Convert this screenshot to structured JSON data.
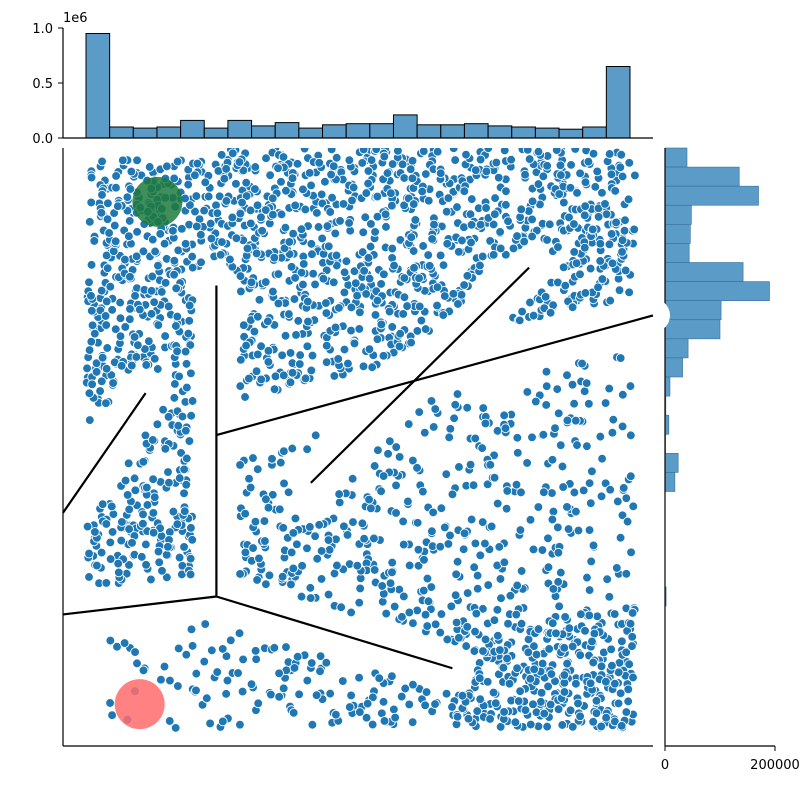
{
  "chart_data": [
    {
      "type": "bar",
      "panel": "top-marginal-histogram",
      "orientation": "vertical",
      "offset_label": "1e6",
      "yticks": [
        "0.0",
        "0.5",
        "1.0"
      ],
      "ylim": [
        0,
        1.0
      ],
      "bin_count": 23,
      "values": [
        0.95,
        0.1,
        0.09,
        0.1,
        0.16,
        0.09,
        0.16,
        0.11,
        0.14,
        0.09,
        0.12,
        0.13,
        0.13,
        0.21,
        0.12,
        0.12,
        0.13,
        0.11,
        0.1,
        0.09,
        0.08,
        0.1,
        0.65
      ],
      "color": "#5a9bc8"
    },
    {
      "type": "bar",
      "panel": "right-marginal-histogram",
      "orientation": "horizontal",
      "xticks": [
        "0",
        "200000"
      ],
      "xlim": [
        0,
        200000
      ],
      "bin_count": 24,
      "values": [
        40000,
        135000,
        170000,
        48000,
        46000,
        44000,
        142000,
        190000,
        102000,
        100000,
        42000,
        32000,
        9000,
        1500,
        7000,
        1000,
        24000,
        18000,
        0,
        0,
        0,
        0,
        0,
        2000
      ],
      "color": "#5a9bc8"
    },
    {
      "type": "scatter",
      "panel": "main-joint-plot",
      "point_color": "#1f77b4",
      "edge_color": "#ffffff",
      "walls": [
        [
          [
            0.0,
            0.39
          ],
          [
            0.14,
            0.59
          ]
        ],
        [
          [
            0.26,
            0.77
          ],
          [
            0.26,
            0.25
          ]
        ],
        [
          [
            0.0,
            0.22
          ],
          [
            0.26,
            0.25
          ]
        ],
        [
          [
            0.26,
            0.25
          ],
          [
            0.66,
            0.13
          ]
        ],
        [
          [
            0.26,
            0.52
          ],
          [
            1.0,
            0.72
          ]
        ],
        [
          [
            0.42,
            0.44
          ],
          [
            0.79,
            0.8
          ]
        ]
      ],
      "goal_marker": {
        "x": 0.16,
        "y": 0.91,
        "color": "#1e7a3c"
      },
      "start_marker": {
        "x": 0.13,
        "y": 0.07,
        "color": "#ff6b6b"
      },
      "clusters": [
        {
          "region": "upper-dense",
          "density": "high"
        },
        {
          "region": "lower-right-sparse",
          "density": "medium"
        },
        {
          "region": "bottom-left-sparse",
          "density": "low"
        }
      ]
    }
  ]
}
